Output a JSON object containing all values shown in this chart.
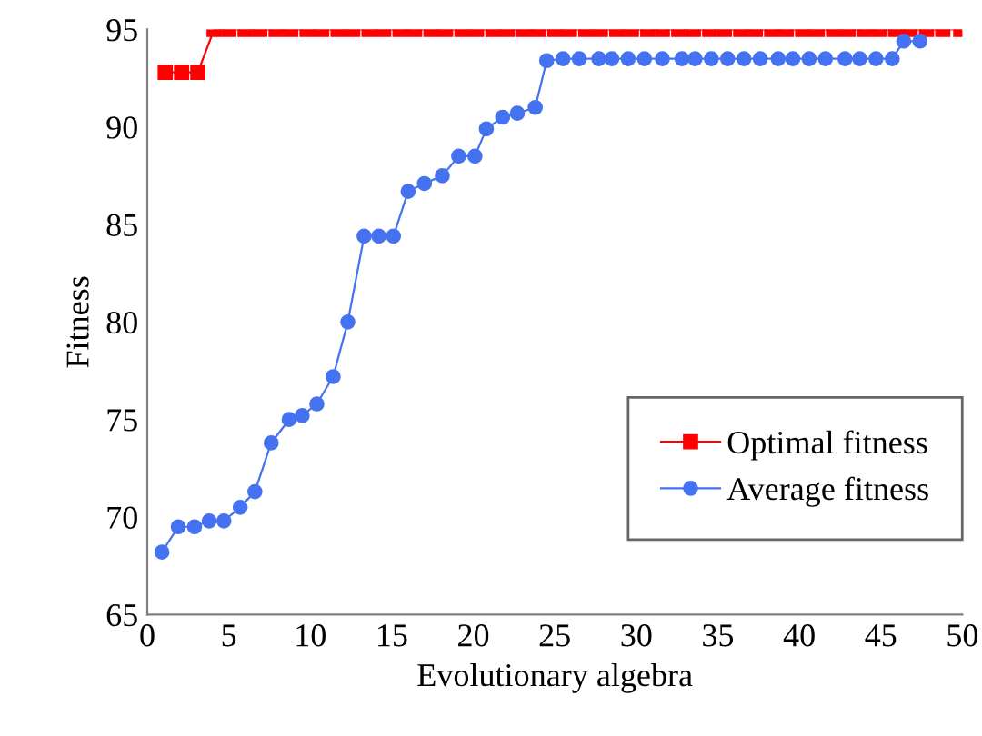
{
  "chart_data": {
    "type": "line",
    "xlabel": "Evolutionary algebra",
    "ylabel": "Fitness",
    "xlim": [
      0,
      50
    ],
    "xticks": [
      0,
      5,
      10,
      15,
      20,
      25,
      30,
      35,
      40,
      45,
      50
    ],
    "ylim": [
      65,
      95
    ],
    "yticks": [
      65,
      70,
      75,
      80,
      85,
      90,
      95
    ],
    "grid": false,
    "legend": "bottom right",
    "series": [
      {
        "name": "Optimal fitness",
        "color": "#ff0000",
        "marker": "square",
        "x": [
          1.1,
          2.1,
          3.1,
          4.1,
          5.0,
          6.0,
          6.9,
          7.9,
          8.8,
          9.8,
          10.7,
          11.7,
          12.6,
          13.6,
          14.5,
          15.5,
          16.4,
          17.4,
          18.3,
          19.3,
          20.2,
          21.2,
          22.1,
          23.1,
          24.0,
          25.0,
          25.9,
          26.9,
          27.8,
          28.8,
          29.7,
          30.7,
          31.6,
          32.6,
          33.5,
          34.5,
          35.4,
          36.4,
          37.3,
          38.3,
          39.2,
          40.2,
          41.1,
          42.1,
          43.0,
          44.0,
          44.9,
          45.9,
          46.8,
          47.8,
          48.8,
          49.9
        ],
        "values": [
          92.8,
          92.8,
          92.8,
          95,
          95,
          95,
          95,
          95,
          95,
          95,
          95,
          95,
          95,
          95,
          95,
          95,
          95,
          95,
          95,
          95,
          95,
          95,
          95,
          95,
          95,
          95,
          95,
          95,
          95,
          95,
          95,
          95,
          95,
          95,
          95,
          95,
          95,
          95,
          95,
          95,
          95,
          95,
          95,
          95,
          95,
          95,
          95,
          95,
          95,
          95,
          95,
          95
        ]
      },
      {
        "name": "Average fitness",
        "color": "#4472f0",
        "marker": "circle",
        "x": [
          0.9,
          1.9,
          2.9,
          3.8,
          4.7,
          5.7,
          6.6,
          7.6,
          8.7,
          9.5,
          10.4,
          11.4,
          12.3,
          13.3,
          14.2,
          15.1,
          16.0,
          17.0,
          18.1,
          19.1,
          20.1,
          20.8,
          21.8,
          22.7,
          23.8,
          24.5,
          25.5,
          26.5,
          27.7,
          28.5,
          29.5,
          30.5,
          31.6,
          32.8,
          33.6,
          34.6,
          35.6,
          36.6,
          37.6,
          38.7,
          39.6,
          40.6,
          41.6,
          42.8,
          43.7,
          44.7,
          45.7,
          46.4,
          47.4
        ],
        "values": [
          68.2,
          69.5,
          69.5,
          69.8,
          69.8,
          70.5,
          71.3,
          73.8,
          75.0,
          75.2,
          75.8,
          77.2,
          80.0,
          84.4,
          84.4,
          84.4,
          86.7,
          87.1,
          87.5,
          88.5,
          88.5,
          89.9,
          90.5,
          90.7,
          91.0,
          93.4,
          93.5,
          93.5,
          93.5,
          93.5,
          93.5,
          93.5,
          93.5,
          93.5,
          93.5,
          93.5,
          93.5,
          93.5,
          93.5,
          93.5,
          93.5,
          93.5,
          93.5,
          93.5,
          93.5,
          93.5,
          93.5,
          94.4,
          94.4
        ]
      }
    ]
  }
}
